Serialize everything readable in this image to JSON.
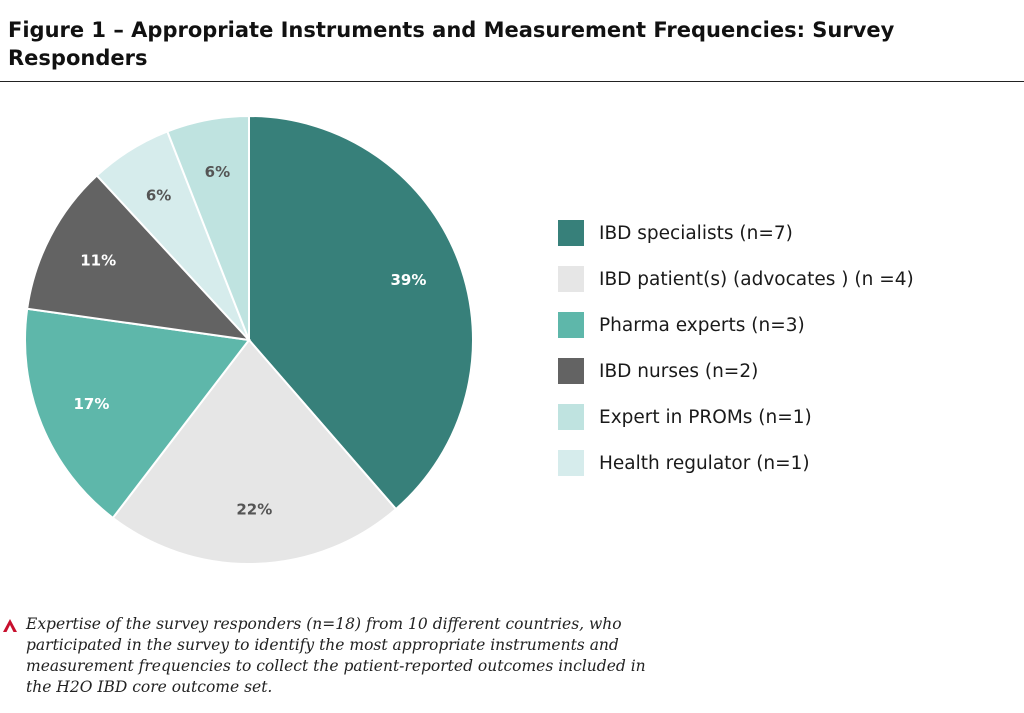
{
  "figure": {
    "title": "Figure 1 – Appropriate Instruments and Measurement Frequencies: Survey Responders",
    "caption": "Expertise of the survey responders (n=18) from 10 different countries, who participated in the survey to identify the most appropriate instruments and measurement frequencies to collect the patient-reported outcomes included in the H2O IBD core outcome set.",
    "caption_marker_color": "#c8102e"
  },
  "chart_data": {
    "type": "pie",
    "title": "",
    "legend_position": "right",
    "start_angle": "12 o'clock",
    "direction": "clockwise",
    "slices": [
      {
        "label": "IBD specialists (n=7)",
        "value": 39,
        "display": "39%",
        "color": "#37807a",
        "label_color": "#ffffff"
      },
      {
        "label": "IBD patient(s) (advocates ) (n =4)",
        "value": 22,
        "display": "22%",
        "color": "#e6e6e6",
        "label_color": "#555555"
      },
      {
        "label": "Pharma experts (n=3)",
        "value": 17,
        "display": "17%",
        "color": "#5eb7aa",
        "label_color": "#ffffff"
      },
      {
        "label": "IBD nurses (n=2)",
        "value": 11,
        "display": "11%",
        "color": "#636363",
        "label_color": "#ffffff"
      },
      {
        "label": "Expert in PROMs (n=1)",
        "value": 6,
        "display": "6%",
        "color": "#bfe3e0",
        "label_color": "#555555"
      },
      {
        "label": "Health regulator (n=1)",
        "value": 6,
        "display": "6%",
        "color": "#d6ecec",
        "label_color": "#555555"
      }
    ],
    "pie_order": [
      0,
      1,
      2,
      3,
      5,
      4
    ],
    "legend": [
      {
        "label": "IBD specialists (n=7)",
        "color": "#37807a"
      },
      {
        "label": "IBD patient(s) (advocates ) (n =4)",
        "color": "#e6e6e6"
      },
      {
        "label": "Pharma experts (n=3)",
        "color": "#5eb7aa"
      },
      {
        "label": "IBD nurses (n=2)",
        "color": "#636363"
      },
      {
        "label": "Expert in PROMs (n=1)",
        "color": "#bfe3e0"
      },
      {
        "label": "Health regulator (n=1)",
        "color": "#d6ecec"
      }
    ]
  }
}
